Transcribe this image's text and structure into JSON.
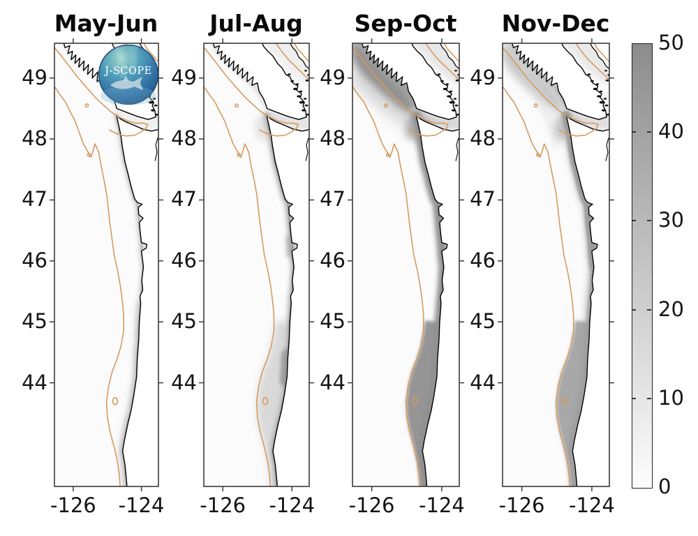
{
  "panels": [
    {
      "title": "May-Jun"
    },
    {
      "title": "Jul-Aug"
    },
    {
      "title": "Sep-Oct"
    },
    {
      "title": "Nov-Dec"
    }
  ],
  "axes": {
    "lat_ticks": [
      49,
      48,
      47,
      46,
      45,
      44
    ],
    "lon_tick_labels": [
      "-126",
      "-124"
    ],
    "lon_ticks": [
      -126,
      -124
    ]
  },
  "colorbar": {
    "min": 0,
    "max": 50,
    "ticks": [
      0,
      10,
      20,
      30,
      40,
      50
    ],
    "top_color": "#8c8c8c",
    "bottom_color": "#fdfdfd"
  },
  "logo": {
    "label": "J-SCOPE"
  },
  "colors": {
    "contour": "#d69a5e",
    "coastline": "#000000",
    "land": "#ffffff",
    "axis": "#3a3a3a",
    "text": "#141414"
  },
  "chart_data": {
    "type": "heatmap",
    "title": "",
    "panels": [
      "May-Jun",
      "Jul-Aug",
      "Sep-Oct",
      "Nov-Dec"
    ],
    "lat_range": [
      42.3,
      49.6
    ],
    "lon_range": [
      -126.55,
      -123.5
    ],
    "colorbar": {
      "range": [
        0,
        50
      ],
      "ticks": [
        0,
        10,
        20,
        30,
        40,
        50
      ],
      "colormap": "white-to-gray"
    },
    "overlay_contour": "shelf-break isobath (orange) following the coast, looping into the Strait of Juan de Fuca",
    "panel_summaries": [
      {
        "panel": "May-Jun",
        "coastal_band_value": "≈5-15",
        "notes": "faint narrow gray band hugging the coast south of 47.5N"
      },
      {
        "panel": "Jul-Aug",
        "coastal_band_value": "≈15-30",
        "notes": "moderate band along WA/OR coast, patches near 44-44.5N and 46.2N, light shading in strait"
      },
      {
        "panel": "Sep-Oct",
        "coastal_band_value": "≈35-50",
        "notes": "dark band coast-wide, dark region along Vancouver Island coast and strait mouth, widest 43-45N"
      },
      {
        "panel": "Nov-Dec",
        "coastal_band_value": "≈25-45",
        "notes": "dark narrow band along WA/OR coast with lighter halo, medium gray off Vancouver Island"
      }
    ]
  }
}
